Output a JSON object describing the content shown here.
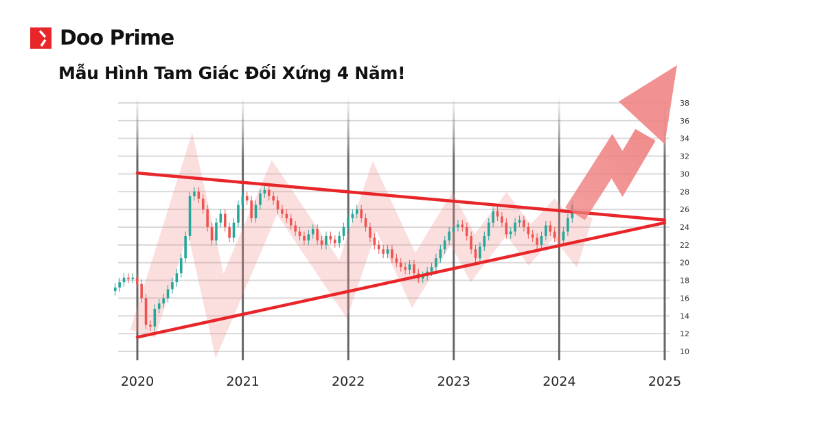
{
  "brand": {
    "name": "Doo Prime",
    "color": "#e8262a"
  },
  "title": "Mẫu Hình Tam Giác Đối Xứng 4 Năm!",
  "chart_data": {
    "type": "candlestick",
    "title": "Mẫu Hình Tam Giác Đối Xứng 4 Năm!",
    "x_ticks": [
      "2020",
      "2021",
      "2022",
      "2023",
      "2024",
      "2025"
    ],
    "xlim": [
      2019.8,
      2025.15
    ],
    "y_ticks": [
      10,
      12,
      14,
      16,
      18,
      20,
      22,
      24,
      26,
      28,
      30,
      32,
      34,
      36,
      38
    ],
    "ylim": [
      10,
      38
    ],
    "y_axis_side": "right",
    "grid": true,
    "colors": {
      "up": "#26a69a",
      "down": "#ef5350",
      "trendline": "#e8262a",
      "band": "#f28b8b"
    },
    "start": 2019.79,
    "step_years": 0.041667,
    "closes": [
      17.2,
      17.8,
      18.3,
      18.2,
      18.3,
      17.6,
      16.0,
      13.0,
      12.8,
      14.8,
      15.4,
      16.0,
      17.0,
      17.8,
      18.8,
      20.5,
      23.0,
      27.5,
      28.0,
      27.2,
      26.0,
      24.0,
      22.5,
      24.5,
      25.5,
      24.0,
      22.8,
      24.5,
      26.5,
      27.5,
      27.0,
      25.0,
      26.5,
      27.8,
      28.2,
      27.5,
      27.0,
      26.0,
      25.5,
      25.0,
      24.2,
      23.5,
      23.0,
      22.5,
      23.2,
      23.8,
      22.5,
      22.0,
      23.0,
      22.6,
      22.2,
      23.0,
      24.0,
      25.0,
      25.5,
      26.0,
      25.0,
      24.0,
      22.8,
      22.0,
      21.5,
      21.0,
      21.5,
      20.5,
      20.0,
      19.5,
      19.2,
      19.8,
      18.8,
      18.2,
      18.5,
      19.0,
      19.5,
      20.5,
      21.5,
      22.5,
      23.5,
      24.0,
      24.3,
      24.0,
      23.0,
      21.5,
      20.5,
      21.8,
      23.0,
      24.5,
      25.8,
      25.2,
      24.5,
      23.2,
      23.5,
      24.5,
      24.8,
      24.0,
      23.2,
      22.8,
      22.0,
      23.0,
      24.2,
      23.5,
      22.8,
      22.5,
      23.5,
      25.0,
      26.5
    ],
    "trendlines": [
      {
        "name": "resistance",
        "from": [
          2020,
          30.1
        ],
        "to": [
          2025,
          24.8
        ]
      },
      {
        "name": "support",
        "from": [
          2020,
          11.6
        ],
        "to": [
          2025,
          24.5
        ]
      }
    ],
    "zigzag": [
      [
        2020.05,
        12
      ],
      [
        2020.5,
        29
      ],
      [
        2020.78,
        14
      ],
      [
        2021.3,
        28.5
      ],
      [
        2021.95,
        17
      ],
      [
        2022.25,
        27.5
      ],
      [
        2022.62,
        18
      ],
      [
        2022.98,
        25
      ],
      [
        2023.18,
        20.5
      ],
      [
        2023.5,
        25.5
      ],
      [
        2023.72,
        22
      ],
      [
        2023.95,
        25
      ],
      [
        2024.12,
        22.5
      ],
      [
        2024.2,
        25.5
      ]
    ],
    "breakout_arrow": [
      [
        2024.15,
        25.5
      ],
      [
        2024.5,
        32
      ],
      [
        2024.6,
        30
      ],
      [
        2025.0,
        37.5
      ]
    ]
  }
}
